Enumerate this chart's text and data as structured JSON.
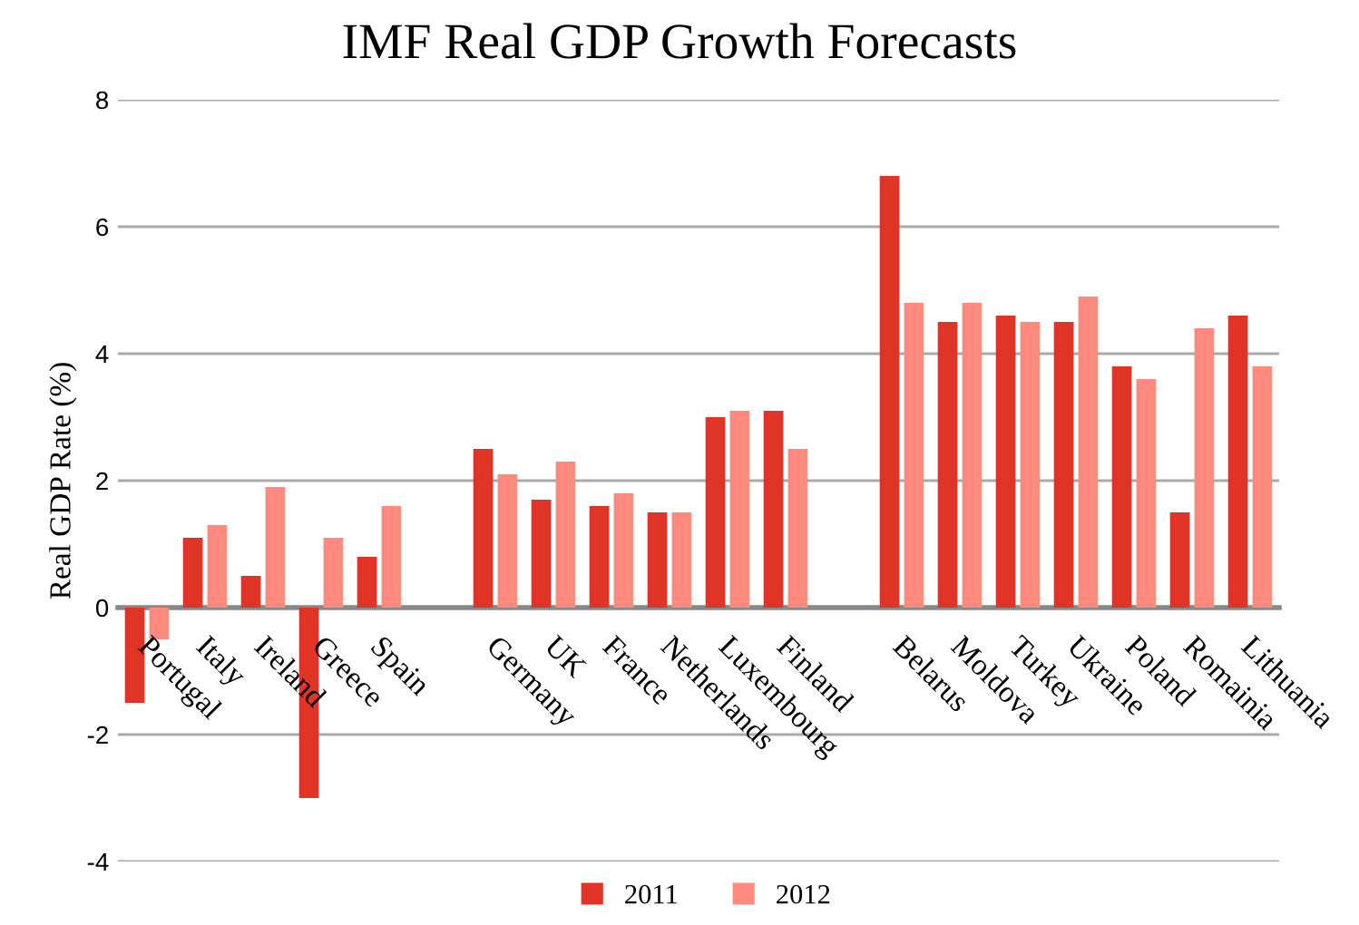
{
  "chart_data": {
    "type": "bar",
    "title": "IMF Real GDP Growth Forecasts",
    "ylabel": "Real GDP Rate (%)",
    "categories": [
      "Portugal",
      "Italy",
      "Ireland",
      "Greece",
      "Spain",
      null,
      "Germany",
      "UK",
      "France",
      "Netherlands",
      "Luxembourg",
      "Finland",
      null,
      "Belarus",
      "Moldova",
      "Turkey",
      "Ukraine",
      "Poland",
      "Romainia",
      "Lithuania"
    ],
    "series": [
      {
        "name": "2011",
        "color": "#e03426",
        "values": [
          -1.5,
          1.1,
          0.5,
          -3.0,
          0.8,
          null,
          2.5,
          1.7,
          1.6,
          1.5,
          3.0,
          3.1,
          null,
          6.8,
          4.5,
          4.6,
          4.5,
          3.8,
          1.5,
          4.6
        ]
      },
      {
        "name": "2012",
        "color": "#ff8a80",
        "values": [
          -0.5,
          1.3,
          1.9,
          1.1,
          1.6,
          null,
          2.1,
          2.3,
          1.8,
          1.5,
          3.1,
          2.5,
          null,
          4.8,
          4.8,
          4.5,
          4.9,
          3.6,
          4.4,
          3.8
        ]
      }
    ],
    "ylim": [
      -4,
      8
    ],
    "yticks": [
      -4,
      -2,
      0,
      2,
      4,
      6,
      8
    ],
    "grid": "y",
    "legend": "bottom"
  }
}
